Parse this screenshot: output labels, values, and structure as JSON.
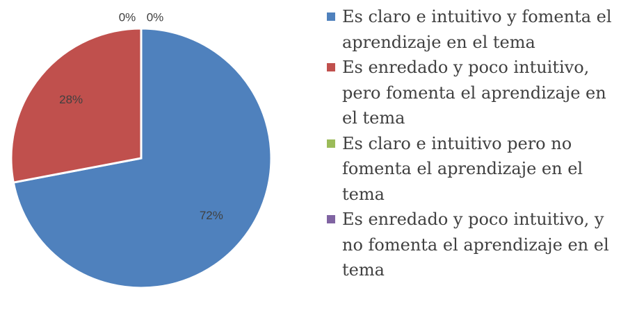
{
  "chart_data": {
    "type": "pie",
    "categories": [
      "Es claro e intuitivo y fomenta el aprendizaje en el tema",
      "Es enredado y poco intuitivo, pero fomenta el aprendizaje en el tema",
      "Es claro e intuitivo pero no fomenta el aprendizaje en el tema",
      "Es enredado y poco intuitivo, y no fomenta el aprendizaje en el tema"
    ],
    "values": [
      72,
      28,
      0,
      0
    ],
    "value_labels": [
      "72%",
      "28%",
      "0%",
      "0%"
    ],
    "colors": [
      "#4f81bd",
      "#c0504d",
      "#9bbb59",
      "#8064a2"
    ],
    "legend": "right"
  }
}
